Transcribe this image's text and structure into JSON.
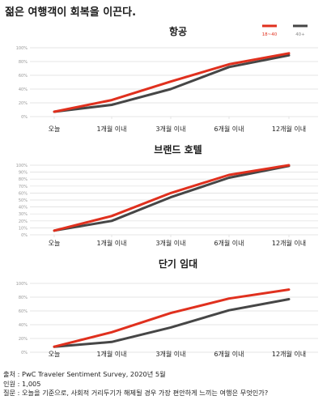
{
  "page": {
    "title": "젊은 여행객이 회복을 이끈다."
  },
  "colors": {
    "young": "#e0301e",
    "old": "#464646",
    "grid": "#dcdcdc",
    "tick": "#999999"
  },
  "legend": {
    "young": "18~40",
    "old": "40+"
  },
  "chart_data": [
    {
      "type": "line",
      "title": "항공",
      "categories": [
        "오늘",
        "1개월 이내",
        "3개월 이내",
        "6개월 이내",
        "12개월 이내"
      ],
      "y_ticks": [
        "0%",
        "20%",
        "40%",
        "60%",
        "80%",
        "100%"
      ],
      "ylim": [
        0,
        100
      ],
      "legend_position": "top-right",
      "series": [
        {
          "name": "18~40",
          "values": [
            7,
            24,
            51,
            76,
            92
          ]
        },
        {
          "name": "40+",
          "values": [
            7,
            17,
            40,
            72,
            89
          ]
        }
      ]
    },
    {
      "type": "line",
      "title": "브랜드 호텔",
      "categories": [
        "오늘",
        "1개월 이내",
        "3개월 이내",
        "6개월 이내",
        "12개월 이내"
      ],
      "y_ticks": [
        "0%",
        "10%",
        "20%",
        "30%",
        "40%",
        "50%",
        "60%",
        "70%",
        "80%",
        "90%",
        "100%"
      ],
      "ylim": [
        0,
        100
      ],
      "series": [
        {
          "name": "18~40",
          "values": [
            6,
            27,
            60,
            86,
            100
          ]
        },
        {
          "name": "40+",
          "values": [
            6,
            20,
            54,
            82,
            99
          ]
        }
      ]
    },
    {
      "type": "line",
      "title": "단기 임대",
      "categories": [
        "오늘",
        "1개월 이내",
        "3개월 이내",
        "6개월 이내",
        "12개월 이내"
      ],
      "y_ticks": [
        "0%",
        "20%",
        "40%",
        "60%",
        "80%",
        "100%"
      ],
      "ylim": [
        0,
        100
      ],
      "series": [
        {
          "name": "18~40",
          "values": [
            8,
            29,
            57,
            78,
            91
          ]
        },
        {
          "name": "40+",
          "values": [
            8,
            15,
            36,
            61,
            77
          ]
        }
      ]
    }
  ],
  "footer": {
    "source": "출처 : PwC Traveler Sentiment Survey, 2020년 5월",
    "respondents": "인원 : 1,005",
    "question": "질문 : 오늘을 기준으로, 사회적 거리두기가 해제될 경우 가장 편안하게 느끼는 여행은 무엇인가?"
  }
}
